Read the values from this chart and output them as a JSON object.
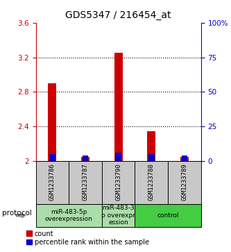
{
  "title": "GDS5347 / 216454_at",
  "samples": [
    "GSM1233786",
    "GSM1233787",
    "GSM1233790",
    "GSM1233788",
    "GSM1233789"
  ],
  "red_values": [
    2.9,
    2.05,
    3.25,
    2.35,
    2.05
  ],
  "blue_pct": [
    5,
    4,
    6,
    5,
    4
  ],
  "ylim_left": [
    2.0,
    3.6
  ],
  "ylim_right": [
    0,
    100
  ],
  "yticks_left": [
    2.0,
    2.4,
    2.8,
    3.2,
    3.6
  ],
  "yticks_right": [
    0,
    25,
    50,
    75,
    100
  ],
  "ytick_labels_left": [
    "2",
    "2.4",
    "2.8",
    "3.2",
    "3.6"
  ],
  "ytick_labels_right": [
    "0",
    "25",
    "50",
    "75",
    "100%"
  ],
  "dotted_lines": [
    2.4,
    2.8,
    3.2
  ],
  "groups": [
    {
      "start": 0,
      "end": 1,
      "label": "miR-483-5p\noverexpression",
      "color": "#aaddaa"
    },
    {
      "start": 2,
      "end": 2,
      "label": "miR-483-3\np overexpr\nession",
      "color": "#aaddaa"
    },
    {
      "start": 3,
      "end": 4,
      "label": "control",
      "color": "#44cc44"
    }
  ],
  "bar_width": 0.25,
  "blue_bar_width": 0.18,
  "sample_bg_color": "#c8c8c8",
  "red_color": "#cc0000",
  "blue_color": "#0000cc",
  "legend_red_label": "count",
  "legend_blue_label": "percentile rank within the sample",
  "protocol_label": "protocol",
  "title_fontsize": 10,
  "tick_fontsize": 7.5,
  "sample_fontsize": 6.5,
  "proto_fontsize": 6.5,
  "legend_fontsize": 7
}
